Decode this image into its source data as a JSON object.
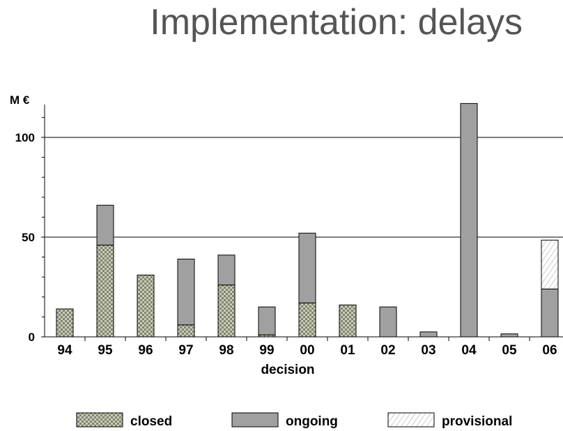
{
  "slide": {
    "title": "Implementation: delays"
  },
  "chart_data": {
    "type": "bar",
    "stacked": true,
    "title": "",
    "xlabel": "decision",
    "ylabel": "M €",
    "ylim": [
      0,
      117
    ],
    "yticks": [
      0,
      50,
      100
    ],
    "gridlines": [
      50,
      100
    ],
    "grid": "horizontal at 50 and 100",
    "legend_position": "bottom",
    "categories": [
      "94",
      "95",
      "96",
      "97",
      "98",
      "99",
      "00",
      "01",
      "02",
      "03",
      "04",
      "05",
      "06"
    ],
    "series": [
      {
        "name": "closed",
        "pattern": "checker",
        "color": "#a3a88f",
        "values": [
          14,
          46,
          31,
          6,
          26,
          1,
          17,
          16,
          0,
          0,
          0,
          0,
          0
        ]
      },
      {
        "name": "ongoing",
        "pattern": "solid",
        "color": "#a0a0a0",
        "values": [
          0,
          20,
          0,
          33,
          15,
          14,
          35,
          0,
          15,
          2.5,
          117,
          1.5,
          24
        ]
      },
      {
        "name": "provisional",
        "pattern": "hatch",
        "color": "#ffffff",
        "values": [
          0,
          0,
          0,
          0,
          0,
          0,
          0,
          0,
          0,
          0,
          0,
          0,
          24.5
        ]
      }
    ]
  }
}
